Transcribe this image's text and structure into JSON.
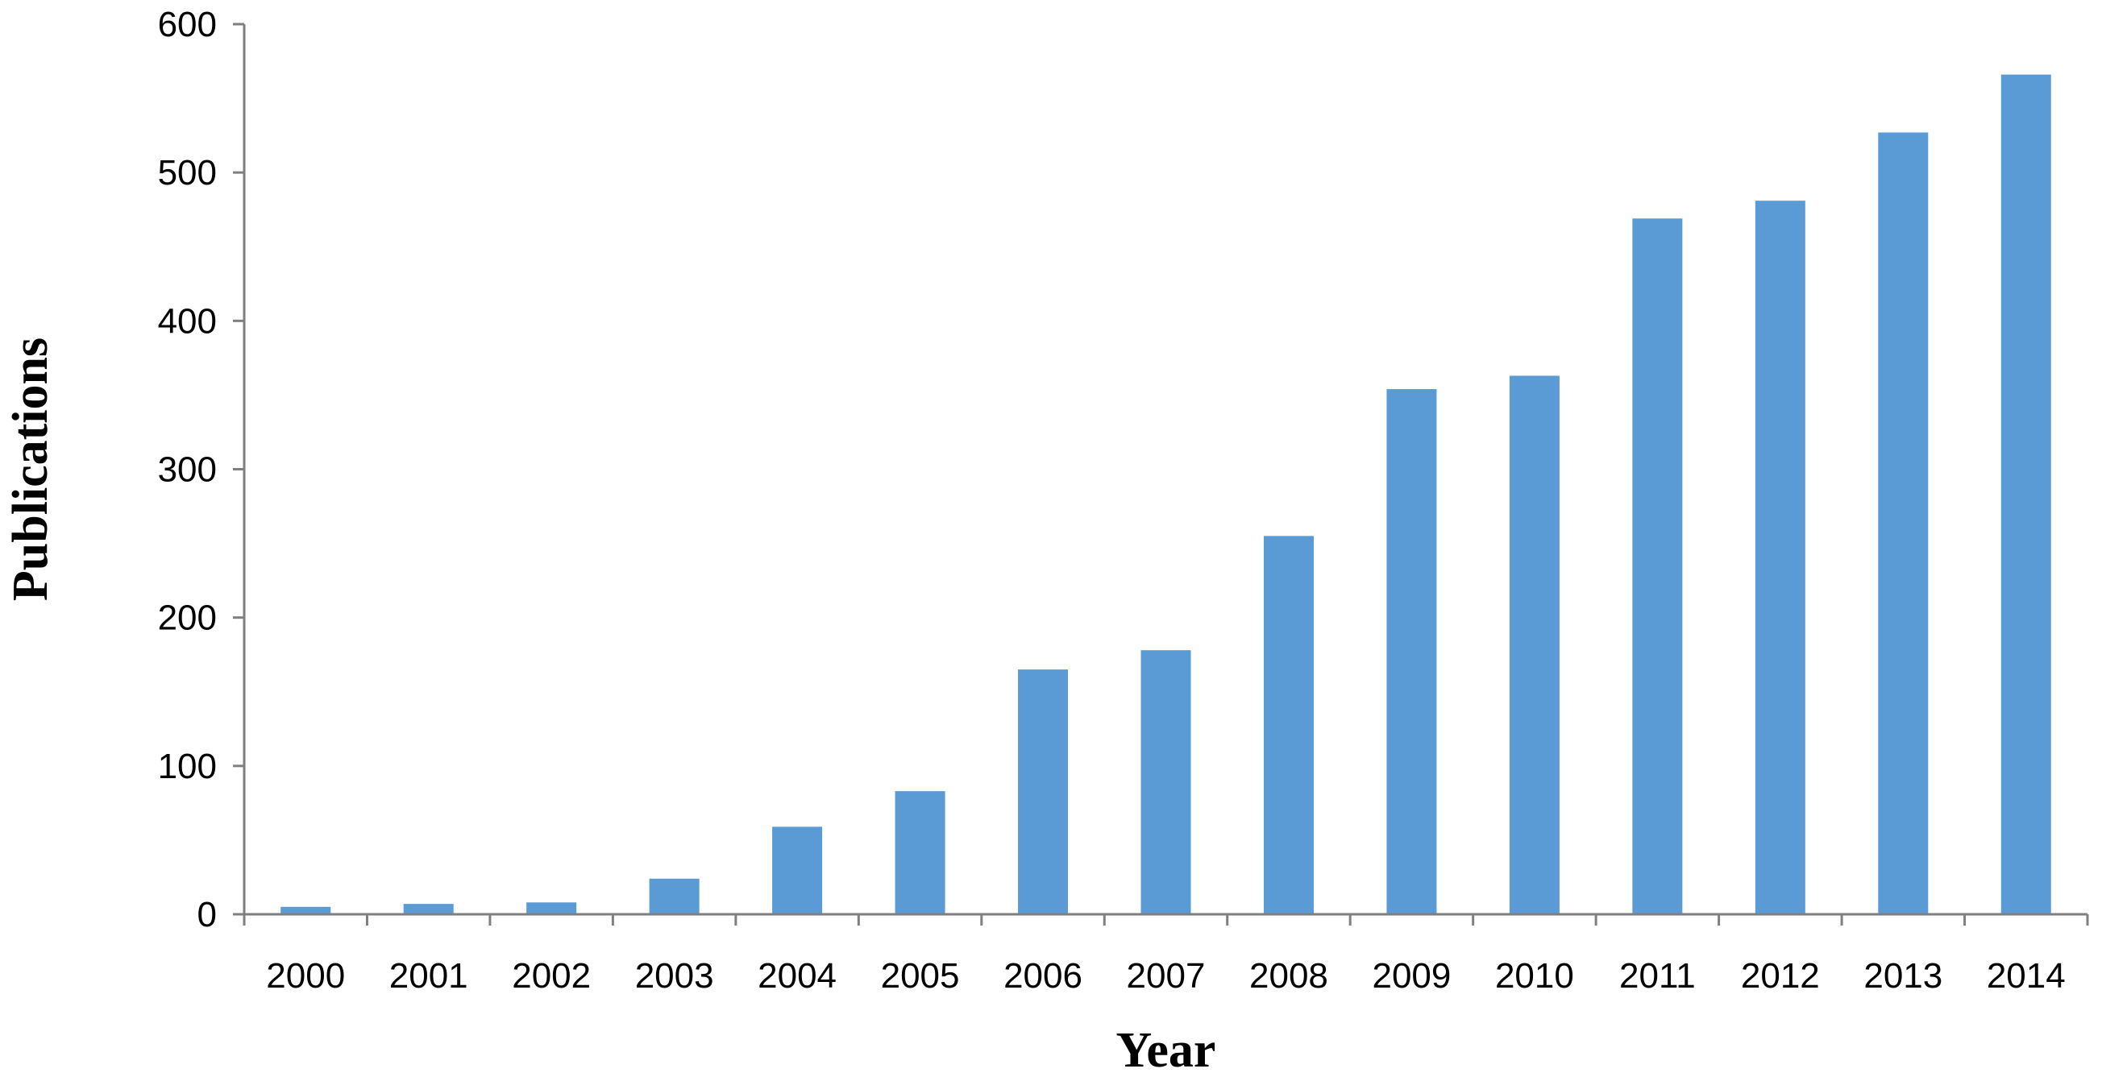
{
  "chart_data": {
    "type": "bar",
    "xlabel": "Year",
    "ylabel": "Publications",
    "categories": [
      "2000",
      "2001",
      "2002",
      "2003",
      "2004",
      "2005",
      "2006",
      "2007",
      "2008",
      "2009",
      "2010",
      "2011",
      "2012",
      "2013",
      "2014"
    ],
    "values": [
      5,
      7,
      8,
      24,
      59,
      83,
      165,
      178,
      255,
      354,
      363,
      469,
      481,
      527,
      566
    ],
    "ylim": [
      0,
      600
    ],
    "yticks": [
      "0",
      "100",
      "200",
      "300",
      "400",
      "500",
      "600"
    ],
    "legend": "none",
    "grid": false,
    "bar_color": "#5B9BD5",
    "axis_color": "#7F7F7F"
  }
}
